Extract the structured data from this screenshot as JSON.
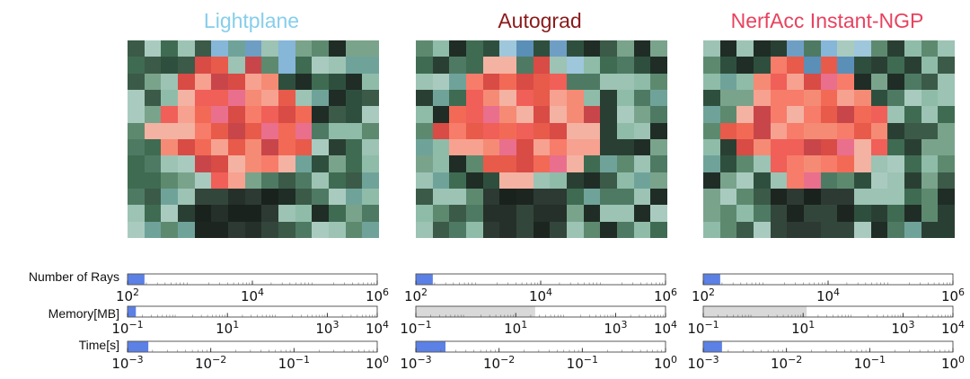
{
  "row_labels": [
    "Number of Rays",
    "Memory[MB]",
    "Time[s]"
  ],
  "colors": {
    "bar_fill": "#5b80e6",
    "memory_default_fill": "#d9d9d9",
    "title_lightplane": "#87ceeb",
    "title_autograd": "#8b1a1a",
    "title_nerfacc": "#e8425e"
  },
  "chart_data": [
    {
      "type": "bar",
      "title": "Lightplane",
      "rows": [
        {
          "label": "Number of Rays",
          "scale": "log",
          "xlim": [
            100,
            1000000
          ],
          "ticks": [
            {
              "mant": "10",
              "exp": "2"
            },
            {
              "mant": "10",
              "exp": "4"
            },
            {
              "mant": "10",
              "exp": "6"
            }
          ],
          "tick_values": [
            100,
            10000,
            1000000
          ],
          "value": 190
        },
        {
          "label": "Memory[MB]",
          "scale": "log",
          "xlim": [
            0.1,
            10000
          ],
          "ticks": [
            {
              "mant": "10",
              "exp": "−1"
            },
            {
              "mant": "10",
              "exp": "1"
            },
            {
              "mant": "10",
              "exp": "3"
            },
            {
              "mant": "10",
              "exp": "4"
            }
          ],
          "tick_values": [
            0.1,
            10,
            1000,
            10000
          ],
          "value": 0.15
        },
        {
          "label": "Time[s]",
          "scale": "log",
          "xlim": [
            0.001,
            1
          ],
          "ticks": [
            {
              "mant": "10",
              "exp": "−3"
            },
            {
              "mant": "10",
              "exp": "−2"
            },
            {
              "mant": "10",
              "exp": "−1"
            },
            {
              "mant": "10",
              "exp": "0"
            }
          ],
          "tick_values": [
            0.001,
            0.01,
            0.1,
            1
          ],
          "value": 0.0018
        }
      ]
    },
    {
      "type": "bar",
      "title": "Autograd",
      "rows": [
        {
          "label": "Number of Rays",
          "scale": "log",
          "xlim": [
            100,
            1000000
          ],
          "ticks": [
            {
              "mant": "10",
              "exp": "2"
            },
            {
              "mant": "10",
              "exp": "4"
            },
            {
              "mant": "10",
              "exp": "6"
            }
          ],
          "tick_values": [
            100,
            10000,
            1000000
          ],
          "value": 190
        },
        {
          "label": "Memory[MB]",
          "scale": "log",
          "xlim": [
            0.1,
            10000
          ],
          "ticks": [
            {
              "mant": "10",
              "exp": "−1"
            },
            {
              "mant": "10",
              "exp": "1"
            },
            {
              "mant": "10",
              "exp": "3"
            },
            {
              "mant": "10",
              "exp": "4"
            }
          ],
          "tick_values": [
            0.1,
            10,
            1000,
            10000
          ],
          "value": 25,
          "gray": true
        },
        {
          "label": "Time[s]",
          "scale": "log",
          "xlim": [
            0.001,
            1
          ],
          "ticks": [
            {
              "mant": "10",
              "exp": "−3"
            },
            {
              "mant": "10",
              "exp": "−2"
            },
            {
              "mant": "10",
              "exp": "−1"
            },
            {
              "mant": "10",
              "exp": "0"
            }
          ],
          "tick_values": [
            0.001,
            0.01,
            0.1,
            1
          ],
          "value": 0.0023
        }
      ]
    },
    {
      "type": "bar",
      "title": "NerfAcc Instant-NGP",
      "rows": [
        {
          "label": "Number of Rays",
          "scale": "log",
          "xlim": [
            100,
            1000000
          ],
          "ticks": [
            {
              "mant": "10",
              "exp": "2"
            },
            {
              "mant": "10",
              "exp": "4"
            },
            {
              "mant": "10",
              "exp": "6"
            }
          ],
          "tick_values": [
            100,
            10000,
            1000000
          ],
          "value": 190
        },
        {
          "label": "Memory[MB]",
          "scale": "log",
          "xlim": [
            0.1,
            10000
          ],
          "ticks": [
            {
              "mant": "10",
              "exp": "−1"
            },
            {
              "mant": "10",
              "exp": "1"
            },
            {
              "mant": "10",
              "exp": "3"
            },
            {
              "mant": "10",
              "exp": "4"
            }
          ],
          "tick_values": [
            0.1,
            10,
            1000,
            10000
          ],
          "value": 12,
          "gray": true
        },
        {
          "label": "Time[s]",
          "scale": "log",
          "xlim": [
            0.001,
            1
          ],
          "ticks": [
            {
              "mant": "10",
              "exp": "−3"
            },
            {
              "mant": "10",
              "exp": "−2"
            },
            {
              "mant": "10",
              "exp": "−1"
            },
            {
              "mant": "10",
              "exp": "0"
            }
          ],
          "tick_values": [
            0.001,
            0.01,
            0.1,
            1
          ],
          "value": 0.0017
        }
      ]
    }
  ]
}
